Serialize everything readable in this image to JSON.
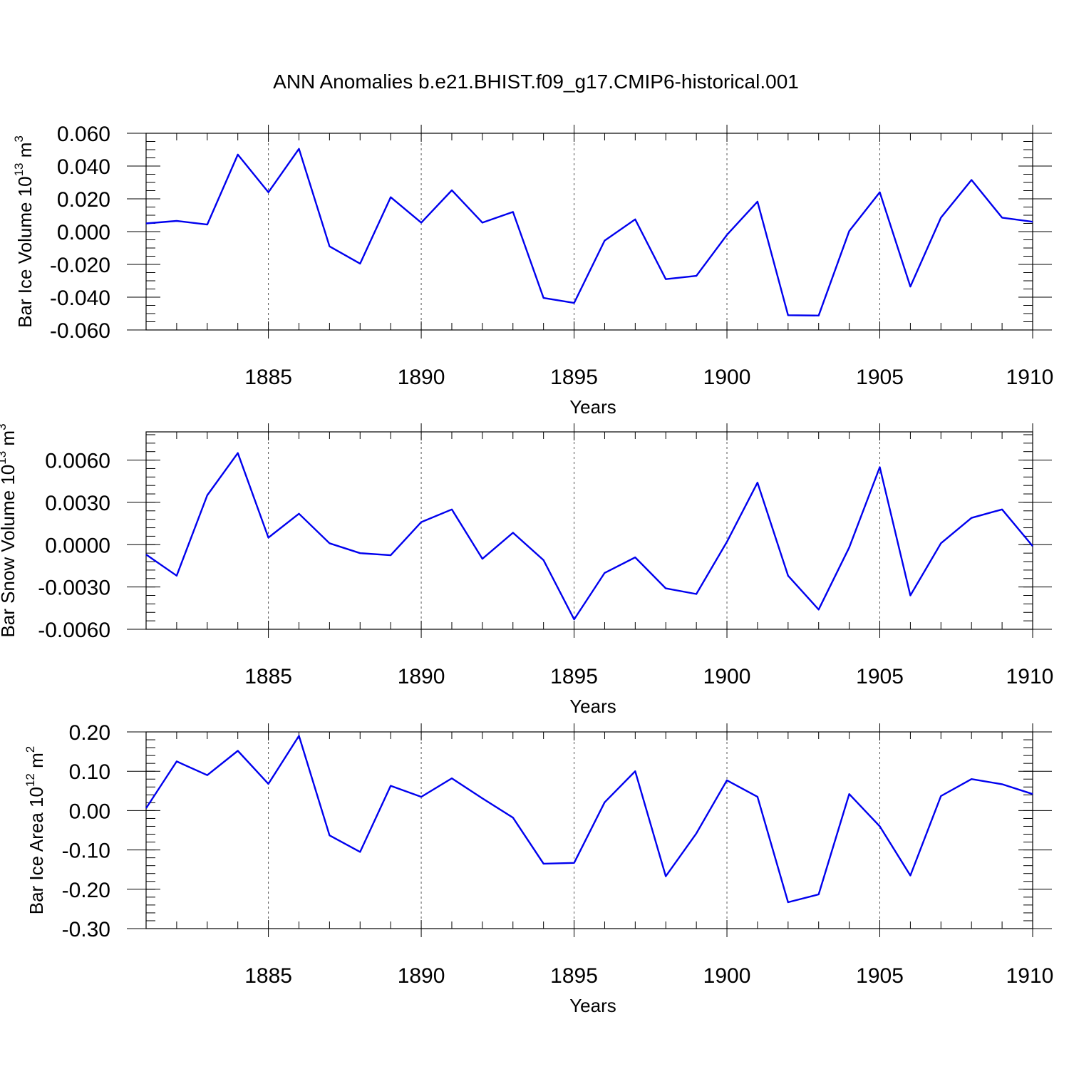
{
  "title": "ANN Anomalies b.e21.BHIST.f09_g17.CMIP6-historical.001",
  "line_color": "#0000ee",
  "chart_data": [
    {
      "type": "line",
      "ylabel": "Bar Ice Volume 10",
      "ylabel_exp": "13",
      "ylabel_unit": " m",
      "ylabel_unit_exp": "3",
      "xlabel": "Years",
      "xlim": [
        1881,
        1910
      ],
      "ylim": [
        -0.06,
        0.06
      ],
      "y_ticks": [
        -0.06,
        -0.04,
        -0.02,
        0.0,
        0.02,
        0.04,
        0.06
      ],
      "y_tick_labels": [
        "-0.060",
        "-0.040",
        "-0.020",
        "0.000",
        "0.020",
        "0.040",
        "0.060"
      ],
      "y_minor_step": 0.005,
      "x_ticks": [
        1885,
        1890,
        1895,
        1900,
        1905,
        1910
      ],
      "x_tick_labels": [
        "1885",
        "1890",
        "1895",
        "1900",
        "1905",
        "1910"
      ],
      "grid": "vertical dashed at major x ticks",
      "x": [
        1881,
        1882,
        1883,
        1884,
        1885,
        1886,
        1887,
        1888,
        1889,
        1890,
        1891,
        1892,
        1893,
        1894,
        1895,
        1896,
        1897,
        1898,
        1899,
        1900,
        1901,
        1902,
        1903,
        1904,
        1905,
        1906,
        1907,
        1908,
        1909,
        1910
      ],
      "values": [
        0.005,
        0.0065,
        0.0043,
        0.047,
        0.024,
        0.0505,
        -0.009,
        -0.0195,
        0.021,
        0.0055,
        0.0252,
        0.0055,
        0.012,
        -0.0405,
        -0.0435,
        -0.0055,
        0.0075,
        -0.029,
        -0.027,
        -0.002,
        0.0183,
        -0.051,
        -0.0512,
        0.0003,
        0.024,
        -0.0335,
        0.0085,
        0.0315,
        0.0085,
        0.006
      ]
    },
    {
      "type": "line",
      "ylabel": "Bar Snow Volume 10",
      "ylabel_exp": "13",
      "ylabel_unit": " m",
      "ylabel_unit_exp": "3",
      "xlabel": "Years",
      "xlim": [
        1881,
        1910
      ],
      "ylim": [
        -0.006,
        0.008
      ],
      "y_ticks": [
        -0.006,
        -0.003,
        0.0,
        0.003,
        0.006
      ],
      "y_tick_labels": [
        "-0.0060",
        "-0.0030",
        "0.0000",
        "0.0030",
        "0.0060"
      ],
      "y_minor_step": 0.0006,
      "x_ticks": [
        1885,
        1890,
        1895,
        1900,
        1905,
        1910
      ],
      "x_tick_labels": [
        "1885",
        "1890",
        "1895",
        "1900",
        "1905",
        "1910"
      ],
      "grid": "vertical dashed at major x ticks",
      "x": [
        1881,
        1882,
        1883,
        1884,
        1885,
        1886,
        1887,
        1888,
        1889,
        1890,
        1891,
        1892,
        1893,
        1894,
        1895,
        1896,
        1897,
        1898,
        1899,
        1900,
        1901,
        1902,
        1903,
        1904,
        1905,
        1906,
        1907,
        1908,
        1909,
        1910
      ],
      "values": [
        -0.0007,
        -0.0022,
        0.0035,
        0.0065,
        0.0005,
        0.0022,
        0.0001,
        -0.0006,
        -0.00075,
        0.0016,
        0.0025,
        -0.001,
        0.00085,
        -0.0011,
        -0.0053,
        -0.002,
        -0.0009,
        -0.0031,
        -0.0035,
        0.0002,
        0.0044,
        -0.0022,
        -0.0046,
        -0.0002,
        0.0055,
        -0.0036,
        0.0001,
        0.0019,
        0.0025,
        -0.0001
      ]
    },
    {
      "type": "line",
      "ylabel": "Bar Ice Area 10",
      "ylabel_exp": "12",
      "ylabel_unit": " m",
      "ylabel_unit_exp": "2",
      "xlabel": "Years",
      "xlim": [
        1881,
        1910
      ],
      "ylim": [
        -0.3,
        0.2
      ],
      "y_ticks": [
        -0.3,
        -0.2,
        -0.1,
        0.0,
        0.1,
        0.2
      ],
      "y_tick_labels": [
        "-0.30",
        "-0.20",
        "-0.10",
        "0.00",
        "0.10",
        "0.20"
      ],
      "y_minor_step": 0.02,
      "x_ticks": [
        1885,
        1890,
        1895,
        1900,
        1905,
        1910
      ],
      "x_tick_labels": [
        "1885",
        "1890",
        "1895",
        "1900",
        "1905",
        "1910"
      ],
      "grid": "vertical dashed at major x ticks",
      "x": [
        1881,
        1882,
        1883,
        1884,
        1885,
        1886,
        1887,
        1888,
        1889,
        1890,
        1891,
        1892,
        1893,
        1894,
        1895,
        1896,
        1897,
        1898,
        1899,
        1900,
        1901,
        1902,
        1903,
        1904,
        1905,
        1906,
        1907,
        1908,
        1909,
        1910
      ],
      "values": [
        0.006,
        0.125,
        0.09,
        0.152,
        0.068,
        0.19,
        -0.063,
        -0.105,
        0.063,
        0.035,
        0.082,
        0.031,
        -0.018,
        -0.135,
        -0.133,
        0.021,
        0.1,
        -0.167,
        -0.058,
        0.077,
        0.035,
        -0.233,
        -0.213,
        0.042,
        -0.04,
        -0.165,
        0.037,
        0.08,
        0.067,
        0.042
      ]
    }
  ]
}
